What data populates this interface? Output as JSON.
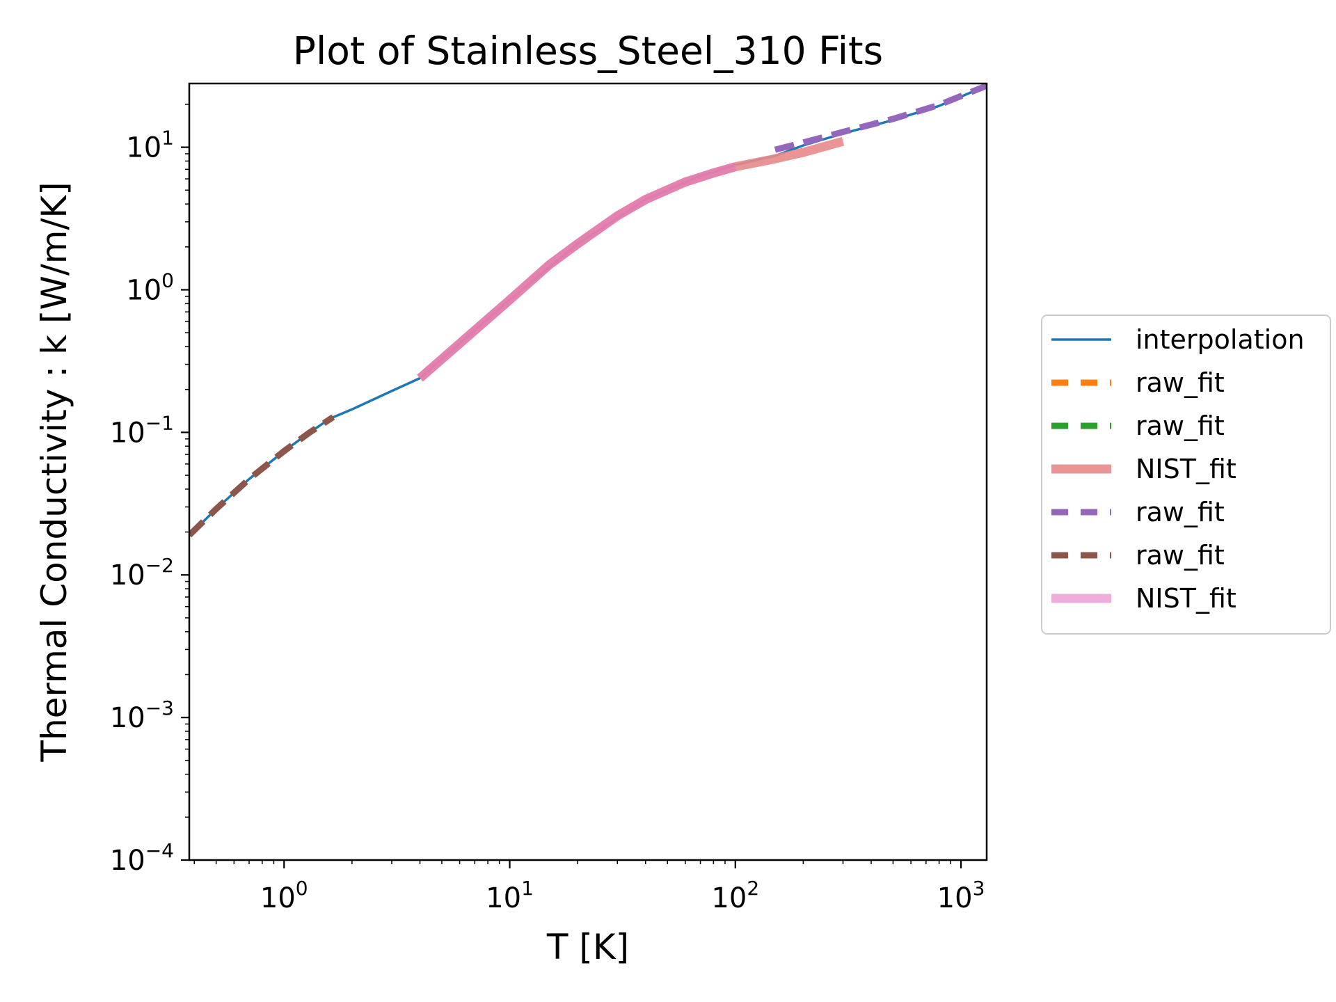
{
  "chart_data": {
    "type": "line",
    "title": "Plot of Stainless_Steel_310 Fits",
    "xlabel": "T [K]",
    "ylabel": "Thermal Conductivity : k [W/m/K]",
    "xscale": "log",
    "yscale": "log",
    "xlim": [
      0.38,
      1300
    ],
    "ylim": [
      0.0001,
      28
    ],
    "x_ticks": [
      {
        "base": "10",
        "exp": "0",
        "value": 1
      },
      {
        "base": "10",
        "exp": "1",
        "value": 10
      },
      {
        "base": "10",
        "exp": "2",
        "value": 100
      },
      {
        "base": "10",
        "exp": "3",
        "value": 1000
      }
    ],
    "y_ticks": [
      {
        "base": "10",
        "exp": "−4",
        "value": 0.0001
      },
      {
        "base": "10",
        "exp": "−3",
        "value": 0.001
      },
      {
        "base": "10",
        "exp": "−2",
        "value": 0.01
      },
      {
        "base": "10",
        "exp": "−1",
        "value": 0.1
      },
      {
        "base": "10",
        "exp": "0",
        "value": 1
      },
      {
        "base": "10",
        "exp": "1",
        "value": 10
      }
    ],
    "grid": false,
    "legend_position": "outside-right",
    "series": [
      {
        "name": "interpolation",
        "color": "#1f77b4",
        "style": "solid",
        "x": [
          0.38,
          0.5,
          0.7,
          1.0,
          1.3,
          1.6,
          2.0,
          3.0,
          4.0,
          6.0,
          10,
          20,
          40,
          70,
          100,
          150,
          200,
          300,
          500,
          800,
          1300
        ],
        "y": [
          0.019,
          0.029,
          0.047,
          0.074,
          0.1,
          0.125,
          0.145,
          0.195,
          0.24,
          0.42,
          0.85,
          2.1,
          4.3,
          6.3,
          7.5,
          8.7,
          10.3,
          12.5,
          15.5,
          19.5,
          27
        ]
      },
      {
        "name": "raw_fit",
        "color": "#ff7f0e",
        "style": "dashed",
        "x": [],
        "y": []
      },
      {
        "name": "raw_fit",
        "color": "#2ca02c",
        "style": "dashed",
        "x": [],
        "y": []
      },
      {
        "name": "NIST_fit",
        "color": "#e8898a",
        "style": "thick",
        "x": [
          4,
          6,
          10,
          15,
          20,
          30,
          40,
          60,
          80,
          100,
          150,
          200,
          300
        ],
        "y": [
          0.24,
          0.42,
          0.85,
          1.5,
          2.1,
          3.3,
          4.3,
          5.7,
          6.6,
          7.3,
          8.3,
          9.2,
          11.0
        ]
      },
      {
        "name": "raw_fit",
        "color": "#9467bd",
        "style": "dashed",
        "x": [
          150,
          200,
          300,
          500,
          800,
          1300
        ],
        "y": [
          9.6,
          10.8,
          12.8,
          15.8,
          19.8,
          27
        ]
      },
      {
        "name": "raw_fit",
        "color": "#8c564b",
        "style": "dashed",
        "x": [
          0.38,
          0.5,
          0.7,
          1.0,
          1.3,
          1.65
        ],
        "y": [
          0.019,
          0.029,
          0.047,
          0.074,
          0.1,
          0.128
        ]
      },
      {
        "name": "NIST_fit",
        "color": "#e377c2",
        "style": "thick-light",
        "x": [
          4,
          6,
          10,
          15,
          20,
          30,
          40,
          60,
          80,
          100
        ],
        "y": [
          0.24,
          0.42,
          0.85,
          1.5,
          2.1,
          3.3,
          4.3,
          5.7,
          6.6,
          7.3
        ]
      }
    ]
  }
}
